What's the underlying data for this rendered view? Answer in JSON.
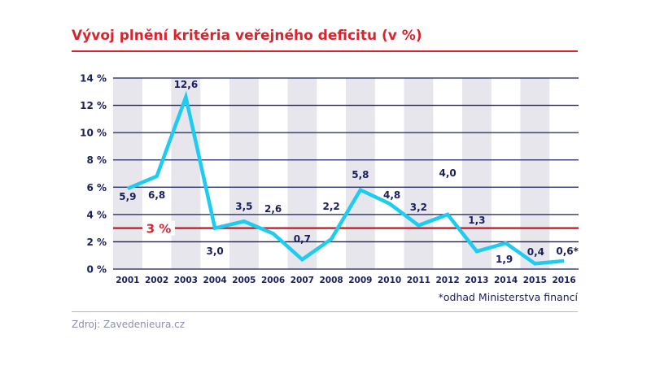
{
  "header": {
    "title": "Vývoj plnění kritéria veřejného deficitu (v %)"
  },
  "footer": {
    "note": "*odhad Ministerstva financí",
    "source": "Zdroj: Zavedenieura.cz"
  },
  "colors": {
    "title": "#d9232d",
    "line": "#1ecbf1",
    "axis_text": "#1a1f5e",
    "threshold": "#d9232d",
    "band": "#e6e6ec"
  },
  "chart_data": {
    "type": "line",
    "title": "Vývoj plnění kritéria veřejného deficitu (v %)",
    "xlabel": "",
    "ylabel": "",
    "categories": [
      "2001",
      "2002",
      "2003",
      "2004",
      "2005",
      "2006",
      "2007",
      "2008",
      "2009",
      "2010",
      "2011",
      "2012",
      "2013",
      "2014",
      "2015",
      "2016"
    ],
    "values": [
      5.9,
      6.8,
      12.6,
      3.0,
      3.5,
      2.6,
      0.7,
      2.2,
      5.8,
      4.8,
      3.2,
      4.0,
      1.3,
      1.9,
      0.4,
      0.6
    ],
    "data_labels": [
      "5,9",
      "6,8",
      "12,6",
      "3,0",
      "3,5",
      "2,6",
      "0,7",
      "2,2",
      "5,8",
      "4,8",
      "3,2",
      "4,0",
      "1,3",
      "1,9",
      "0,4",
      "0,6*"
    ],
    "ylim": [
      0,
      14
    ],
    "yticks": [
      "0 %",
      "2 %",
      "4 %",
      "6 %",
      "8 %",
      "10 %",
      "12 %",
      "14 %"
    ],
    "grid": true,
    "threshold": {
      "value": 3,
      "label": "3 %"
    }
  }
}
